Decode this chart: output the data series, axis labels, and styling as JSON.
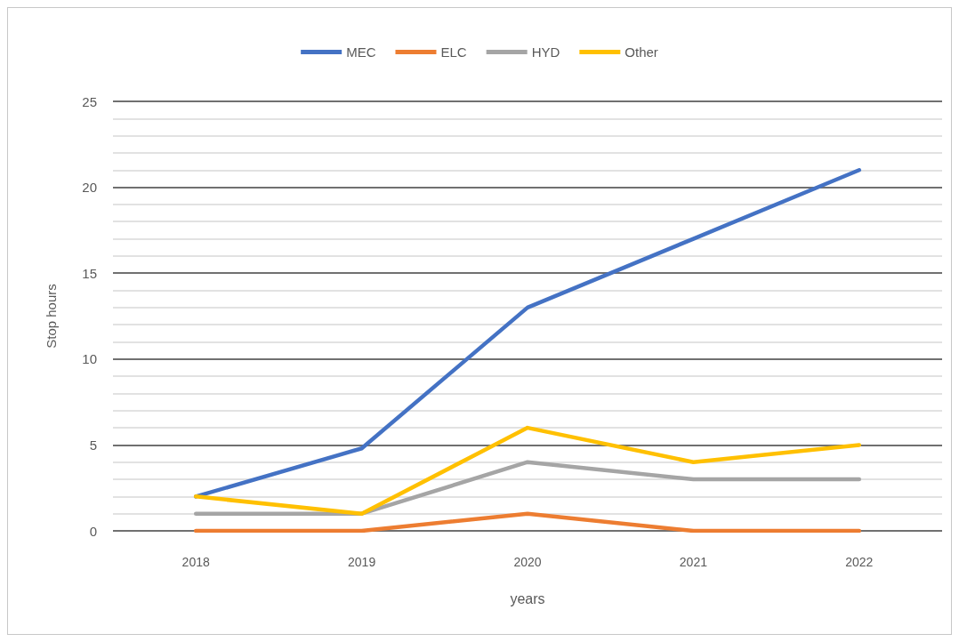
{
  "chart_data": {
    "type": "line",
    "xlabel": "years",
    "ylabel": "Stop hours",
    "categories": [
      "2018",
      "2019",
      "2020",
      "2021",
      "2022"
    ],
    "series": [
      {
        "name": "MEC",
        "color": "#4472c4",
        "values": [
          2,
          4.8,
          13,
          17,
          21
        ]
      },
      {
        "name": "ELC",
        "color": "#ed7d31",
        "values": [
          0,
          0,
          1,
          0,
          0
        ]
      },
      {
        "name": "HYD",
        "color": "#a5a5a5",
        "values": [
          1,
          1,
          4,
          3,
          3
        ]
      },
      {
        "name": "Other",
        "color": "#ffc000",
        "values": [
          2,
          1,
          6,
          4,
          5
        ]
      }
    ],
    "ylim": [
      0,
      25
    ],
    "yticks": [
      0,
      5,
      10,
      15,
      20,
      25
    ],
    "grid": "y",
    "legend": "top",
    "marker": "none",
    "line_style": "solid"
  }
}
